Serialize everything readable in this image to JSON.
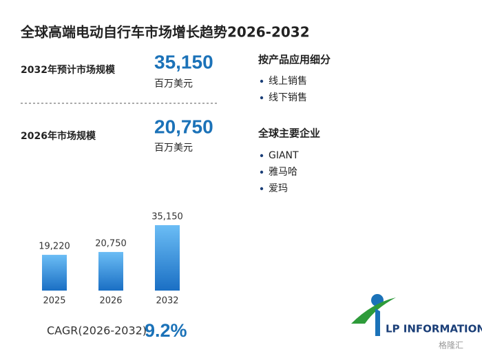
{
  "header": {
    "title": "全球高端电动自行车市场增长趋势2026-2032"
  },
  "stats": [
    {
      "label": "2032年预计市场规模",
      "value": "35,150",
      "unit": "百万美元"
    },
    {
      "label": "2026年市场规模",
      "value": "20,750",
      "unit": "百万美元"
    }
  ],
  "segments": {
    "title": "按产品应用细分",
    "items": [
      "线上销售",
      "线下销售"
    ]
  },
  "companies": {
    "title": "全球主要企业",
    "items": [
      "GIANT",
      "雅马哈",
      "爱玛"
    ]
  },
  "chart_data": {
    "type": "bar",
    "categories": [
      "2025",
      "2026",
      "2032"
    ],
    "values": [
      19220,
      20750,
      35150
    ],
    "value_labels": [
      "19,220",
      "20,750",
      "35,150"
    ],
    "color": "#1a6fc4"
  },
  "cagr": {
    "label": "CAGR(2026-2032)",
    "value": "9.2%"
  },
  "logo": {
    "text": "LP INFORMATION"
  },
  "watermark": "格隆汇"
}
